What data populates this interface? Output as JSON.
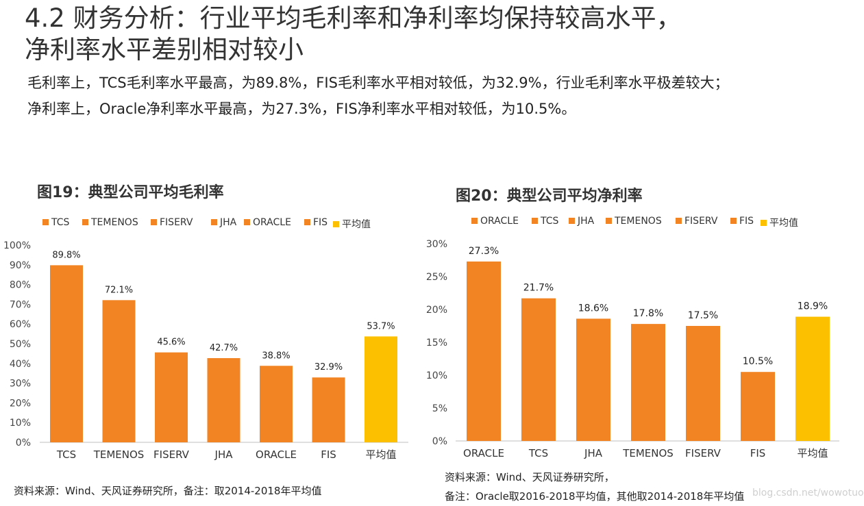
{
  "header": {
    "title_line1": "4.2 财务分析：行业平均毛利率和净利率均保持较高水平，",
    "title_line2": "净利率水平差别相对较小",
    "summary_line1": "毛利率上，TCS毛利率水平最高，为89.8%，FIS毛利率水平相对较低，为32.9%，行业毛利率水平极差较大；",
    "summary_line2": "净利率上，Oracle净利率水平最高，为27.3%，FIS净利率水平相对较低，为10.5%。"
  },
  "colors": {
    "company": "#F28424",
    "average": "#FDC000",
    "axis": "#bfbfbf"
  },
  "chart_data": [
    {
      "type": "bar",
      "title": "图19：典型公司平均毛利率",
      "categories": [
        "TCS",
        "TEMENOS",
        "FISERV",
        "JHA",
        "ORACLE",
        "FIS",
        "平均值"
      ],
      "values": [
        89.8,
        72.1,
        45.6,
        42.7,
        38.8,
        32.9,
        53.7
      ],
      "data_labels": [
        "89.8%",
        "72.1%",
        "45.6%",
        "42.7%",
        "38.8%",
        "32.9%",
        "53.7%"
      ],
      "legend": [
        "TCS",
        "TEMENOS",
        "FISERV",
        "JHA",
        "ORACLE",
        "FIS",
        "平均值"
      ],
      "legend_position": "top",
      "ylim": [
        0,
        100
      ],
      "yticks": [
        0,
        10,
        20,
        30,
        40,
        50,
        60,
        70,
        80,
        90,
        100
      ],
      "ytick_labels": [
        "0%",
        "10%",
        "20%",
        "30%",
        "40%",
        "50%",
        "60%",
        "70%",
        "80%",
        "90%",
        "100%"
      ],
      "grid": false,
      "source": "资料来源：Wind、天风证券研究所，备注：取2014-2018年平均值"
    },
    {
      "type": "bar",
      "title": "图20：典型公司平均净利率",
      "categories": [
        "ORACLE",
        "TCS",
        "JHA",
        "TEMENOS",
        "FISERV",
        "FIS",
        "平均值"
      ],
      "values": [
        27.3,
        21.7,
        18.6,
        17.8,
        17.5,
        10.5,
        18.9
      ],
      "data_labels": [
        "27.3%",
        "21.7%",
        "18.6%",
        "17.8%",
        "17.5%",
        "10.5%",
        "18.9%"
      ],
      "legend": [
        "ORACLE",
        "TCS",
        "JHA",
        "TEMENOS",
        "FISERV",
        "FIS",
        "平均值"
      ],
      "legend_position": "top",
      "ylim": [
        0,
        30
      ],
      "yticks": [
        0,
        5,
        10,
        15,
        20,
        25,
        30
      ],
      "ytick_labels": [
        "0%",
        "5%",
        "10%",
        "15%",
        "20%",
        "25%",
        "30%"
      ],
      "grid": false,
      "source_line1": "资料来源：Wind、天风证券研究所，",
      "source_line2": "备注：Oracle取2016-2018平均值，其他取2014-2018年平均值"
    }
  ],
  "watermark": "blog.csdn.net/wowotuo"
}
